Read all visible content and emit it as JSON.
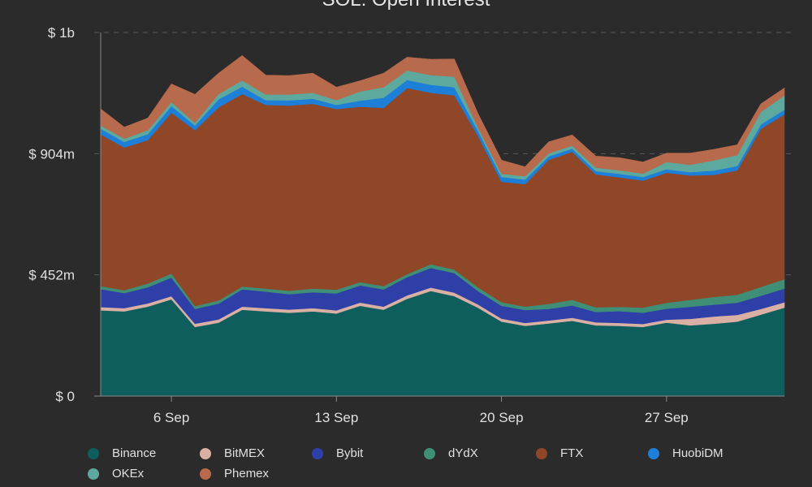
{
  "chart_data": {
    "type": "area",
    "stacked": true,
    "title": "SOL: Open Interest",
    "x_tick_labels": [
      "6 Sep",
      "13 Sep",
      "20 Sep",
      "27 Sep"
    ],
    "y_tick_labels": [
      "$ 0",
      "$ 452m",
      "$ 904m",
      "$ 1b"
    ],
    "y_ticks": [
      0,
      452,
      904,
      1356
    ],
    "ylim": [
      0,
      1356
    ],
    "y_unit": "millions USD",
    "grid": "horizontal dashed",
    "legend_position": "bottom",
    "x": [
      "3 Sep",
      "4 Sep",
      "5 Sep",
      "6 Sep",
      "7 Sep",
      "8 Sep",
      "9 Sep",
      "10 Sep",
      "11 Sep",
      "12 Sep",
      "13 Sep",
      "14 Sep",
      "15 Sep",
      "16 Sep",
      "17 Sep",
      "18 Sep",
      "19 Sep",
      "20 Sep",
      "21 Sep",
      "22 Sep",
      "23 Sep",
      "24 Sep",
      "25 Sep",
      "26 Sep",
      "27 Sep",
      "28 Sep",
      "29 Sep",
      "30 Sep",
      "1 Oct",
      "2 Oct"
    ],
    "series": [
      {
        "name": "Binance",
        "color": "#0e5e5e",
        "values": [
          320,
          316,
          334,
          361,
          258,
          274,
          322,
          316,
          311,
          316,
          308,
          337,
          322,
          363,
          392,
          373,
          330,
          278,
          262,
          271,
          281,
          264,
          262,
          258,
          274,
          264,
          270,
          278,
          304,
          330
        ]
      },
      {
        "name": "BitMEX",
        "color": "#d9b0a3",
        "values": [
          12,
          12,
          12,
          12,
          12,
          12,
          12,
          12,
          12,
          12,
          12,
          12,
          12,
          13,
          13,
          13,
          12,
          11,
          11,
          11,
          11,
          11,
          11,
          11,
          11,
          24,
          27,
          25,
          21,
          20
        ]
      },
      {
        "name": "Bybit",
        "color": "#2f3fa8",
        "values": [
          67,
          56,
          60,
          69,
          55,
          59,
          64,
          62,
          57,
          59,
          63,
          64,
          64,
          68,
          73,
          73,
          50,
          48,
          48,
          43,
          46,
          39,
          44,
          42,
          41,
          45,
          44,
          45,
          49,
          51
        ]
      },
      {
        "name": "dYdX",
        "color": "#3f8f76",
        "values": [
          11,
          11,
          14,
          15,
          11,
          12,
          11,
          11,
          13,
          14,
          14,
          12,
          12,
          11,
          14,
          13,
          14,
          13,
          13,
          19,
          21,
          17,
          16,
          19,
          22,
          26,
          29,
          30,
          33,
          35
        ]
      },
      {
        "name": "FTX",
        "color": "#8f4728",
        "values": [
          566,
          532,
          535,
          600,
          656,
          720,
          718,
          685,
          691,
          689,
          674,
          654,
          665,
          694,
          639,
          650,
          565,
          449,
          457,
          537,
          552,
          496,
          483,
          474,
          485,
          464,
          455,
          464,
          590,
          615
        ]
      },
      {
        "name": "HuobiDM",
        "color": "#1d7fd8",
        "values": [
          21,
          21,
          22,
          25,
          17,
          30,
          27,
          18,
          19,
          19,
          15,
          23,
          38,
          30,
          30,
          30,
          19,
          18,
          17,
          13,
          12,
          12,
          13,
          13,
          13,
          12,
          16,
          16,
          16,
          17
        ]
      },
      {
        "name": "OKEx",
        "color": "#5ea99e",
        "values": [
          12,
          12,
          15,
          15,
          10,
          20,
          23,
          21,
          22,
          22,
          18,
          34,
          39,
          35,
          36,
          39,
          12,
          12,
          12,
          11,
          11,
          13,
          13,
          13,
          27,
          28,
          38,
          41,
          47,
          53
        ]
      },
      {
        "name": "Phemex",
        "color": "#b86a4c",
        "values": [
          62,
          43,
          45,
          67,
          106,
          77,
          93,
          72,
          70,
          73,
          48,
          40,
          52,
          50,
          59,
          66,
          52,
          51,
          35,
          43,
          40,
          43,
          47,
          43,
          33,
          43,
          41,
          38,
          30,
          28
        ]
      }
    ]
  }
}
